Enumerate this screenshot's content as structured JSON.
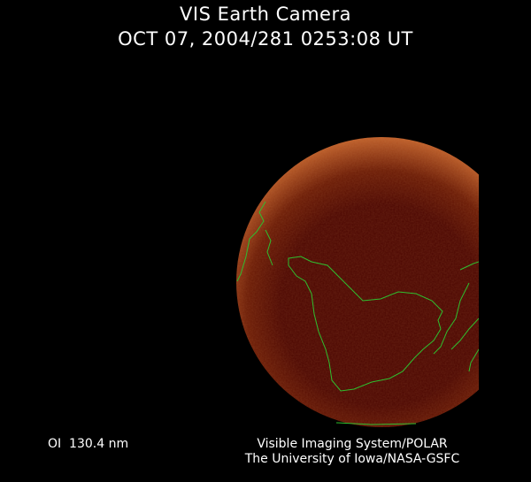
{
  "header": {
    "title": "VIS Earth Camera",
    "timestamp": "OCT 07, 2004/281 0253:08 UT"
  },
  "footer": {
    "wavelength": "OI  130.4 nm",
    "credit_line1": "Visible Imaging System/POLAR",
    "credit_line2": "The University of Iowa/NASA-GSFC"
  },
  "colors": {
    "background": "#000000",
    "earth_disk": "#4a0500",
    "aurora_rim": "#b8501e",
    "coastline": "#2fbf2f",
    "text": "#ffffff"
  }
}
